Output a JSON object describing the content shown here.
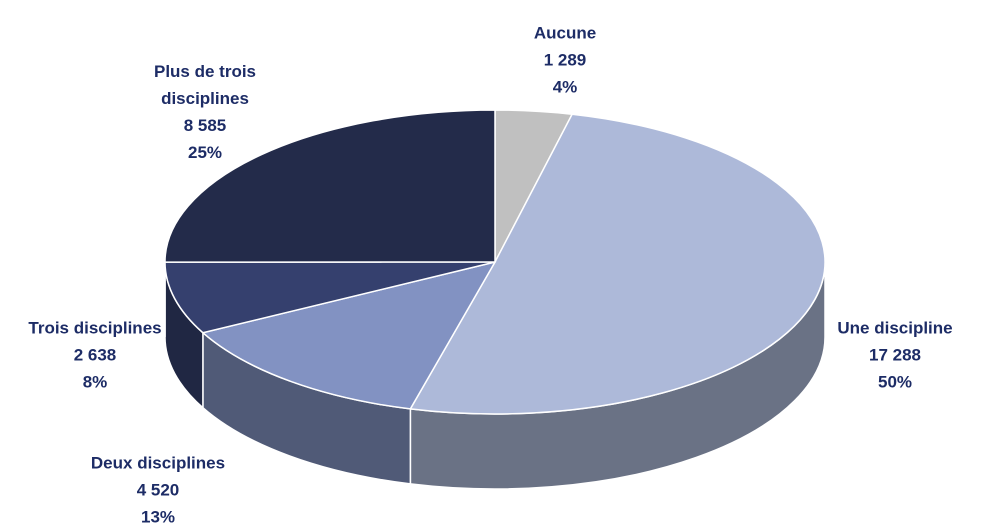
{
  "chart_data": {
    "type": "pie",
    "categories": [
      "Aucune",
      "Une discipline",
      "Deux disciplines",
      "Trois disciplines",
      "Plus de trois disciplines"
    ],
    "values": [
      1289,
      17288,
      4520,
      2638,
      8585
    ],
    "value_labels": [
      "1 289",
      "17 288",
      "4 520",
      "2 638",
      "8 585"
    ],
    "percent_labels": [
      "4%",
      "50%",
      "13%",
      "8%",
      "25%"
    ],
    "colors": [
      "#c0c0c0",
      "#adb9d9",
      "#8292c2",
      "#35406e",
      "#232b4a"
    ]
  }
}
